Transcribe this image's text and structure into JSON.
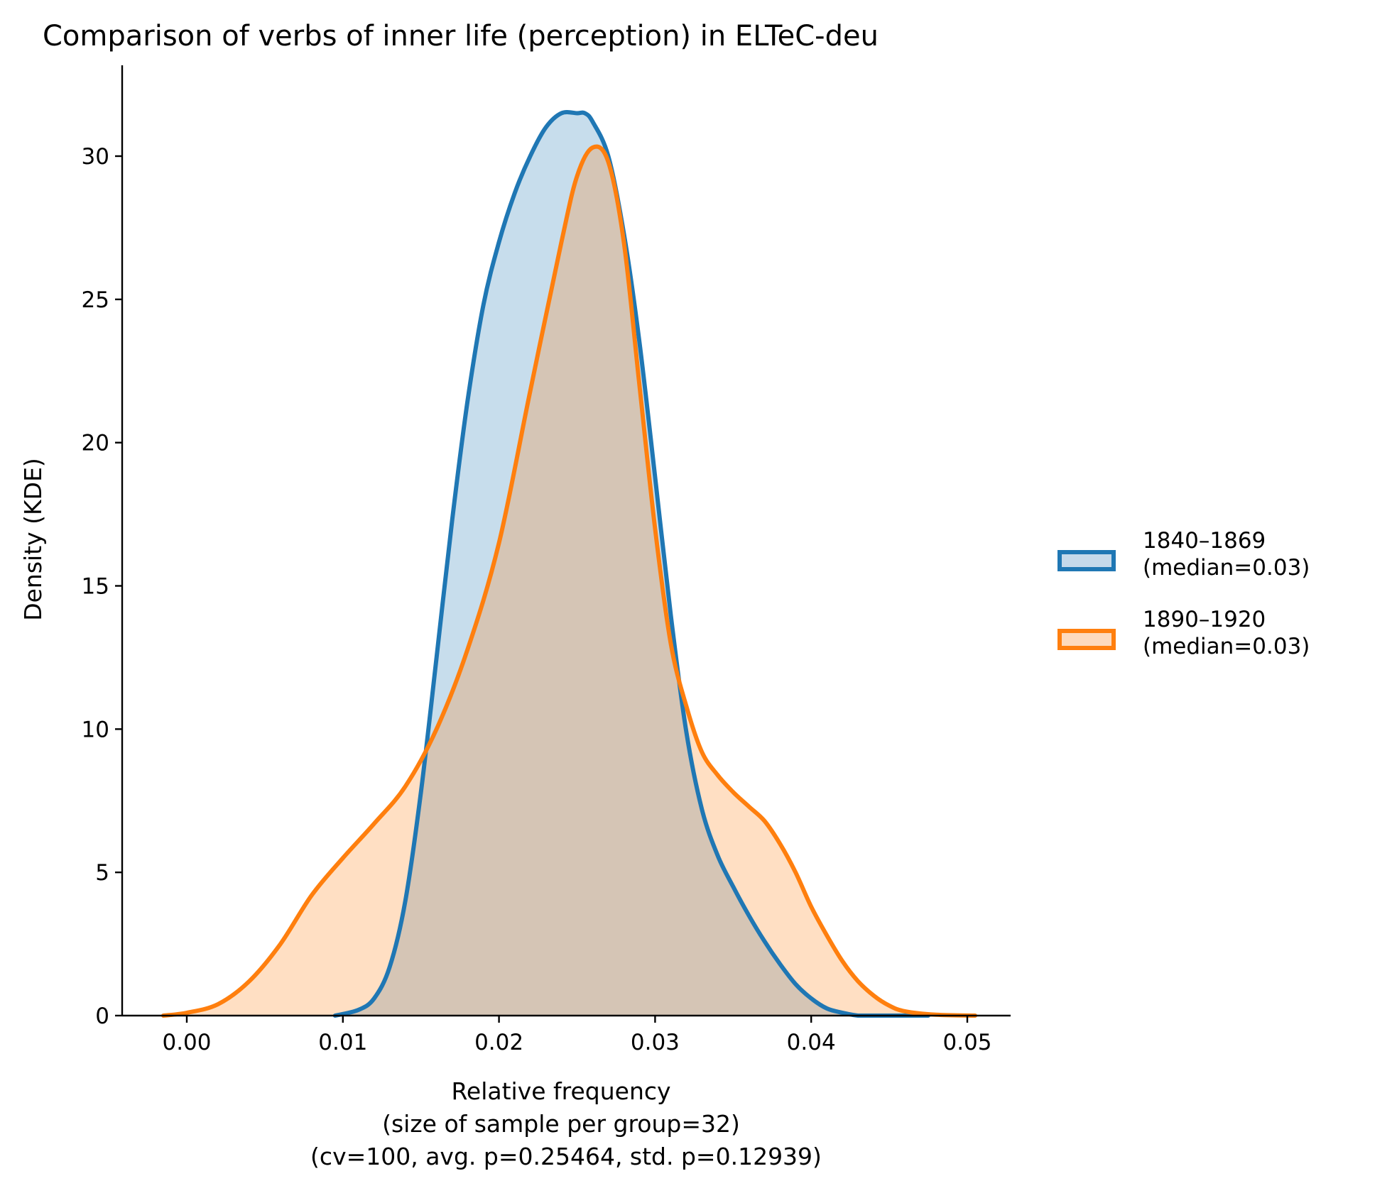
{
  "chart_data": {
    "type": "area",
    "title": "Comparison of verbs of inner life (perception) in ELTeC-deu",
    "xlabel_lines": [
      "Relative frequency",
      "(size of sample per group=32)",
      "(cv=100, avg. p=0.25464, std. p=0.12939)"
    ],
    "ylabel": "Density (KDE)",
    "xlim": [
      -0.005,
      0.053
    ],
    "ylim": [
      0,
      33
    ],
    "xticks": [
      0.0,
      0.01,
      0.02,
      0.03,
      0.04,
      0.05
    ],
    "xtick_labels": [
      "0.00",
      "0.01",
      "0.02",
      "0.03",
      "0.04",
      "0.05"
    ],
    "yticks": [
      0,
      5,
      10,
      15,
      20,
      25,
      30
    ],
    "ytick_labels": [
      "0",
      "5",
      "10",
      "15",
      "20",
      "25",
      "30"
    ],
    "grid": false,
    "legend_position": "right",
    "series": [
      {
        "name": "1840–1869",
        "legend_sub": "(median=0.03)",
        "color": "#1f77b4",
        "fill": "#c5d9ea",
        "x": [
          0.0095,
          0.011,
          0.012,
          0.013,
          0.014,
          0.015,
          0.016,
          0.017,
          0.018,
          0.019,
          0.02,
          0.021,
          0.022,
          0.023,
          0.024,
          0.025,
          0.0255,
          0.026,
          0.027,
          0.028,
          0.029,
          0.03,
          0.031,
          0.032,
          0.033,
          0.034,
          0.035,
          0.036,
          0.037,
          0.038,
          0.039,
          0.04,
          0.041,
          0.042,
          0.043,
          0.044,
          0.045,
          0.046,
          0.047,
          0.0475
        ],
        "y": [
          0.0,
          0.2,
          0.6,
          1.7,
          4.0,
          7.8,
          12.5,
          17.3,
          21.5,
          24.8,
          27.0,
          28.7,
          30.0,
          31.0,
          31.5,
          31.5,
          31.5,
          31.2,
          30.0,
          27.3,
          23.5,
          18.8,
          14.0,
          9.9,
          7.2,
          5.6,
          4.5,
          3.5,
          2.6,
          1.8,
          1.1,
          0.6,
          0.25,
          0.1,
          0.0,
          0.0,
          0.0,
          0.0,
          0.0,
          0.0
        ]
      },
      {
        "name": "1890–1920",
        "legend_sub": "(median=0.03)",
        "color": "#ff7f0e",
        "fill": "#fddabd",
        "x": [
          -0.0015,
          0.0,
          0.002,
          0.004,
          0.006,
          0.008,
          0.01,
          0.012,
          0.014,
          0.016,
          0.018,
          0.02,
          0.022,
          0.024,
          0.025,
          0.026,
          0.027,
          0.028,
          0.029,
          0.03,
          0.031,
          0.032,
          0.033,
          0.034,
          0.035,
          0.036,
          0.037,
          0.038,
          0.039,
          0.04,
          0.041,
          0.042,
          0.043,
          0.044,
          0.045,
          0.046,
          0.048,
          0.0505
        ],
        "y": [
          0.0,
          0.1,
          0.4,
          1.2,
          2.5,
          4.2,
          5.5,
          6.7,
          8.0,
          10.0,
          12.8,
          16.5,
          21.8,
          27.0,
          29.3,
          30.3,
          29.8,
          27.0,
          22.0,
          17.0,
          13.0,
          10.8,
          9.2,
          8.4,
          7.8,
          7.3,
          6.8,
          6.0,
          5.0,
          3.8,
          2.8,
          1.9,
          1.2,
          0.7,
          0.35,
          0.15,
          0.03,
          0.0
        ]
      }
    ]
  }
}
